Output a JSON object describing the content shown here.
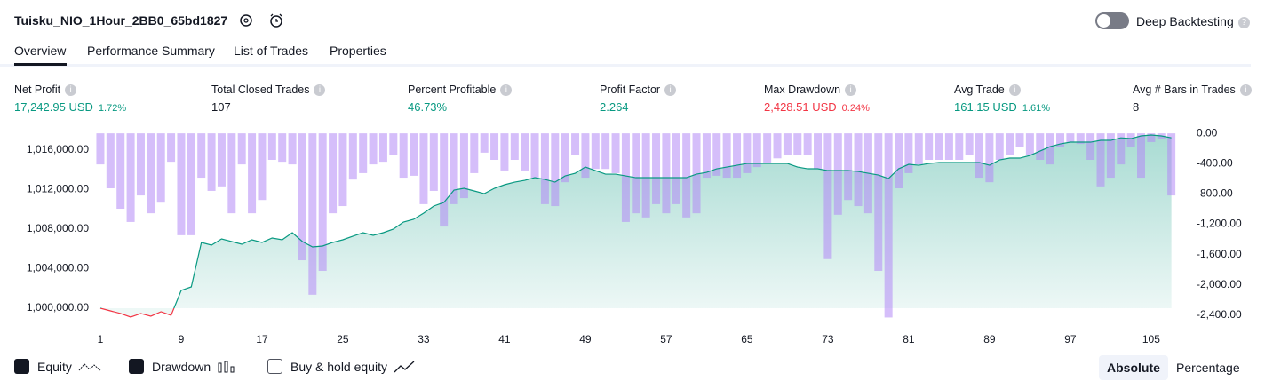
{
  "header": {
    "title": "Tuisku_NIO_1Hour_2BB0_65bd1827",
    "deep_backtesting": "Deep Backtesting"
  },
  "tabs": [
    "Overview",
    "Performance Summary",
    "List of Trades",
    "Properties"
  ],
  "stats": [
    {
      "label": "Net Profit",
      "value": "17,242.95 USD",
      "percent": "1.72%",
      "color": "#089981"
    },
    {
      "label": "Total Closed Trades",
      "value": "107",
      "color": "#131722"
    },
    {
      "label": "Percent Profitable",
      "value": "46.73%",
      "color": "#089981"
    },
    {
      "label": "Profit Factor",
      "value": "2.264",
      "color": "#089981"
    },
    {
      "label": "Max Drawdown",
      "value": "2,428.51 USD",
      "percent": "0.24%",
      "color": "#f23645"
    },
    {
      "label": "Avg Trade",
      "value": "161.15 USD",
      "percent": "1.61%",
      "color": "#089981"
    },
    {
      "label": "Avg # Bars in Trades",
      "value": "8",
      "color": "#131722"
    }
  ],
  "chart_data": {
    "type": "combo",
    "x": [
      1,
      2,
      3,
      4,
      5,
      6,
      7,
      8,
      9,
      10,
      11,
      12,
      13,
      14,
      15,
      16,
      17,
      18,
      19,
      20,
      21,
      22,
      23,
      24,
      25,
      26,
      27,
      28,
      29,
      30,
      31,
      32,
      33,
      34,
      35,
      36,
      37,
      38,
      39,
      40,
      41,
      42,
      43,
      44,
      45,
      46,
      47,
      48,
      49,
      50,
      51,
      52,
      53,
      54,
      55,
      56,
      57,
      58,
      59,
      60,
      61,
      62,
      63,
      64,
      65,
      66,
      67,
      68,
      69,
      70,
      71,
      72,
      73,
      74,
      75,
      76,
      77,
      78,
      79,
      80,
      81,
      82,
      83,
      84,
      85,
      86,
      87,
      88,
      89,
      90,
      91,
      92,
      93,
      94,
      95,
      96,
      97,
      98,
      99,
      100,
      101,
      102,
      103,
      104,
      105,
      106,
      107
    ],
    "series": [
      {
        "name": "Equity",
        "type": "area",
        "color": "#089981",
        "below_color": "#f23645",
        "values": [
          1000000,
          999730,
          999461,
          999101,
          999461,
          999191,
          999640,
          999281,
          1001798,
          1002158,
          1006653,
          1006383,
          1007012,
          1006743,
          1006473,
          1006922,
          1006653,
          1007102,
          1006922,
          1007641,
          1006743,
          1006203,
          1006293,
          1006653,
          1006922,
          1007282,
          1007641,
          1007372,
          1007641,
          1008001,
          1008720,
          1008990,
          1009619,
          1010339,
          1010698,
          1011955,
          1012135,
          1011865,
          1011595,
          1012135,
          1012495,
          1012762,
          1012942,
          1013212,
          1013032,
          1012762,
          1013392,
          1013661,
          1014290,
          1013931,
          1013571,
          1013571,
          1013392,
          1013212,
          1013212,
          1013212,
          1013212,
          1013212,
          1013212,
          1013571,
          1013751,
          1014111,
          1014290,
          1014470,
          1014650,
          1014650,
          1014650,
          1014650,
          1014650,
          1014290,
          1014111,
          1014111,
          1013931,
          1013931,
          1013931,
          1013841,
          1013661,
          1013482,
          1013122,
          1014111,
          1014560,
          1014470,
          1014650,
          1014740,
          1014740,
          1014740,
          1014740,
          1014740,
          1014470,
          1015010,
          1015190,
          1015190,
          1015460,
          1015909,
          1016359,
          1016628,
          1016808,
          1016808,
          1016808,
          1016988,
          1016988,
          1017243,
          1017168,
          1017438,
          1017528,
          1017438,
          1017243
        ]
      },
      {
        "name": "Drawdown",
        "type": "bar",
        "axis": "y2",
        "color": "#b388f5",
        "values": [
          -410,
          -725,
          -995,
          -1170,
          -820,
          -1055,
          -915,
          -375,
          -1345,
          -1345,
          -585,
          -760,
          -700,
          -1055,
          -410,
          -1055,
          -880,
          -350,
          -375,
          -410,
          -1675,
          -2130,
          -1815,
          -1055,
          -960,
          -610,
          -525,
          -410,
          -375,
          -290,
          -585,
          -560,
          -935,
          -760,
          -1230,
          -935,
          -855,
          -525,
          -255,
          -350,
          -490,
          -350,
          -490,
          -585,
          -935,
          -960,
          -645,
          -290,
          -585,
          -470,
          -470,
          -525,
          -1170,
          -1055,
          -1110,
          -935,
          -1055,
          -935,
          -1110,
          -1055,
          -585,
          -560,
          -585,
          -585,
          -525,
          -445,
          -385,
          -330,
          -290,
          -290,
          -290,
          -470,
          -1660,
          -1075,
          -880,
          -960,
          -1055,
          -1815,
          -2430,
          -725,
          -525,
          -410,
          -350,
          -350,
          -350,
          -350,
          -290,
          -585,
          -645,
          -350,
          -290,
          -175,
          -290,
          -350,
          -410,
          -175,
          -115,
          -140,
          -350,
          -700,
          -585,
          -410,
          -175,
          -585,
          -115,
          -80,
          -820
        ]
      }
    ],
    "xlim": [
      0.3,
      108
    ],
    "xticks": [
      1,
      9,
      17,
      25,
      33,
      41,
      49,
      57,
      65,
      73,
      81,
      89,
      97,
      105
    ],
    "ylim": [
      998830,
      1017890
    ],
    "yticks": [
      {
        "value": 1000000,
        "label": "1,000,000.00"
      },
      {
        "value": 1004000,
        "label": "1,004,000.00"
      },
      {
        "value": 1008000,
        "label": "1,008,000.00"
      },
      {
        "value": 1012000,
        "label": "1,012,000.00"
      },
      {
        "value": 1016000,
        "label": "1,016,000.00"
      }
    ],
    "y2lim": [
      -2460,
      25
    ],
    "y2ticks": [
      {
        "value": 0,
        "label": "0.00"
      },
      {
        "value": -400,
        "label": "-400.00"
      },
      {
        "value": -800,
        "label": "-800.00"
      },
      {
        "value": -1200,
        "label": "-1,200.00"
      },
      {
        "value": -1600,
        "label": "-1,600.00"
      },
      {
        "value": -2000,
        "label": "-2,000.00"
      },
      {
        "value": -2400,
        "label": "-2,400.00"
      }
    ]
  },
  "legend": [
    "Equity",
    "Drawdown",
    "Buy & hold equity"
  ],
  "scale_toggle": [
    "Absolute",
    "Percentage"
  ]
}
